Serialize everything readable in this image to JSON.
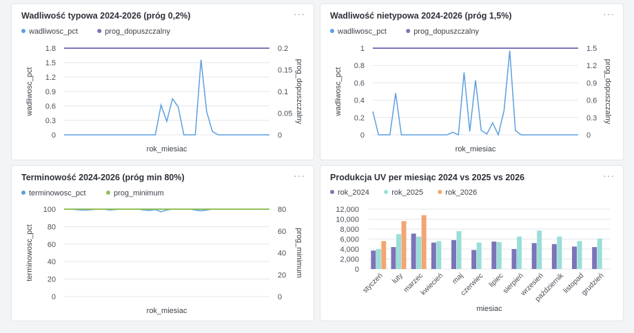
{
  "panels": [
    {
      "title": "Wadliwość typowa 2024-2026 (próg 0,2%)",
      "menu": "···",
      "chart_data": {
        "type": "line",
        "legend": [
          "wadliwosc_pct",
          "prog_dopuszczalny"
        ],
        "xlabel": "rok_miesiac",
        "ylabel_left": "wadliwosc_pct",
        "ylabel_right": "prog_dopuszczalny",
        "y_left_ticks": [
          "0",
          "0.3",
          "0.6",
          "0.9",
          "1.2",
          "1.5",
          "1.8"
        ],
        "y_right_ticks": [
          "0",
          "0.05",
          "0.1",
          "0.15",
          "0.2"
        ],
        "ylim_left": [
          0,
          1.8
        ],
        "ylim_right": [
          0,
          0.2
        ],
        "series": [
          {
            "name": "wadliwosc_pct",
            "axis": "left",
            "values": [
              0,
              0,
              0,
              0,
              0,
              0,
              0,
              0,
              0,
              0,
              0,
              0,
              0,
              0,
              0,
              0,
              0,
              0.62,
              0.28,
              0.75,
              0.58,
              0,
              0,
              0,
              1.56,
              0.48,
              0.07,
              0,
              0,
              0,
              0,
              0,
              0,
              0,
              0,
              0,
              0
            ]
          },
          {
            "name": "prog_dopuszczalny",
            "axis": "right",
            "values": [
              0.2,
              0.2,
              0.2,
              0.2,
              0.2,
              0.2,
              0.2,
              0.2,
              0.2,
              0.2,
              0.2,
              0.2,
              0.2,
              0.2,
              0.2,
              0.2,
              0.2,
              0.2,
              0.2,
              0.2,
              0.2,
              0.2,
              0.2,
              0.2,
              0.2,
              0.2,
              0.2,
              0.2,
              0.2,
              0.2,
              0.2,
              0.2,
              0.2,
              0.2,
              0.2,
              0.2,
              0.2
            ]
          }
        ]
      }
    },
    {
      "title": "Wadliwość nietypowa 2024-2026 (próg 1,5%)",
      "menu": "···",
      "chart_data": {
        "type": "line",
        "legend": [
          "wadliwosc_pct",
          "prog_dopuszczalny"
        ],
        "xlabel": "rok_miesiac",
        "ylabel_left": "wadliwosc_pct",
        "ylabel_right": "prog_dopuszczalny",
        "y_left_ticks": [
          "0",
          "0.2",
          "0.4",
          "0.6",
          "0.8",
          "1"
        ],
        "y_right_ticks": [
          "0",
          "0.3",
          "0.6",
          "0.9",
          "1.2",
          "1.5"
        ],
        "ylim_left": [
          0,
          1
        ],
        "ylim_right": [
          0,
          1.5
        ],
        "series": [
          {
            "name": "wadliwosc_pct",
            "axis": "left",
            "values": [
              0.27,
              0,
              0,
              0,
              0.48,
              0,
              0,
              0,
              0,
              0,
              0,
              0,
              0,
              0,
              0.03,
              0,
              0.72,
              0.04,
              0.63,
              0.05,
              0.01,
              0.14,
              0,
              0.28,
              0.97,
              0.05,
              0,
              0,
              0,
              0,
              0,
              0,
              0,
              0,
              0,
              0,
              0
            ]
          },
          {
            "name": "prog_dopuszczalny",
            "axis": "right",
            "values": [
              1.5,
              1.5,
              1.5,
              1.5,
              1.5,
              1.5,
              1.5,
              1.5,
              1.5,
              1.5,
              1.5,
              1.5,
              1.5,
              1.5,
              1.5,
              1.5,
              1.5,
              1.5,
              1.5,
              1.5,
              1.5,
              1.5,
              1.5,
              1.5,
              1.5,
              1.5,
              1.5,
              1.5,
              1.5,
              1.5,
              1.5,
              1.5,
              1.5,
              1.5,
              1.5,
              1.5,
              1.5
            ]
          }
        ]
      }
    },
    {
      "title": "Terminowość 2024-2026 (próg min 80%)",
      "menu": "···",
      "chart_data": {
        "type": "line",
        "legend": [
          "terminowosc_pct",
          "prog_minimum"
        ],
        "xlabel": "rok_miesiac",
        "ylabel_left": "terminowosc_pct",
        "ylabel_right": "prog_minimum",
        "y_left_ticks": [
          "0",
          "20",
          "40",
          "60",
          "80",
          "100"
        ],
        "y_right_ticks": [
          "0",
          "20",
          "40",
          "60",
          "80"
        ],
        "ylim_left": [
          0,
          100
        ],
        "ylim_right": [
          0,
          80
        ],
        "series": [
          {
            "name": "terminowosc_pct",
            "axis": "left",
            "values": [
              100,
              100,
              99.5,
              99,
              99,
              99.5,
              100,
              100,
              99,
              99.5,
              100,
              100,
              100,
              100,
              99,
              98.5,
              99.5,
              97,
              99,
              100,
              100,
              100,
              100,
              99,
              98,
              99,
              100,
              100,
              100,
              100,
              100,
              100,
              100,
              100,
              100,
              100,
              100
            ]
          },
          {
            "name": "prog_minimum",
            "axis": "right",
            "values": [
              80,
              80,
              80,
              80,
              80,
              80,
              80,
              80,
              80,
              80,
              80,
              80,
              80,
              80,
              80,
              80,
              80,
              80,
              80,
              80,
              80,
              80,
              80,
              80,
              80,
              80,
              80,
              80,
              80,
              80,
              80,
              80,
              80,
              80,
              80,
              80,
              80
            ]
          }
        ]
      }
    },
    {
      "title": "Produkcja UV per miesiąc 2024 vs 2025 vs 2026",
      "menu": "···",
      "chart_data": {
        "type": "bar",
        "legend": [
          "rok_2024",
          "rok_2025",
          "rok_2026"
        ],
        "xlabel": "miesiac",
        "categories": [
          "styczeń",
          "luty",
          "marzec",
          "kwiecień",
          "maj",
          "czerwiec",
          "lipiec",
          "sierpień",
          "wrzesień",
          "październik",
          "listopad",
          "grudzień"
        ],
        "y_ticks": [
          "0",
          "2,000",
          "4,000",
          "6,000",
          "8,000",
          "10,000",
          "12,000"
        ],
        "ylim": [
          0,
          12000
        ],
        "series": [
          {
            "name": "rok_2024",
            "values": [
              3700,
              4400,
              7100,
              5300,
              5800,
              3800,
              5500,
              4000,
              5200,
              5000,
              4500,
              4400
            ]
          },
          {
            "name": "rok_2025",
            "values": [
              4000,
              7000,
              6500,
              5600,
              7600,
              5300,
              5400,
              6500,
              7700,
              6500,
              5600,
              6100
            ]
          },
          {
            "name": "rok_2026",
            "values": [
              5600,
              9600,
              10800,
              null,
              null,
              null,
              null,
              null,
              null,
              null,
              null,
              null
            ]
          }
        ]
      }
    }
  ],
  "colors": {
    "line_series": "#5a9ee0",
    "threshold_purple": "#7c74b8",
    "threshold_green": "#8fbf5a",
    "bar_2024": "#7c74b8",
    "bar_2025": "#99ded9",
    "bar_2026": "#f2a672",
    "grid": "#e3e5e8",
    "tick_text": "#4a4f57"
  }
}
